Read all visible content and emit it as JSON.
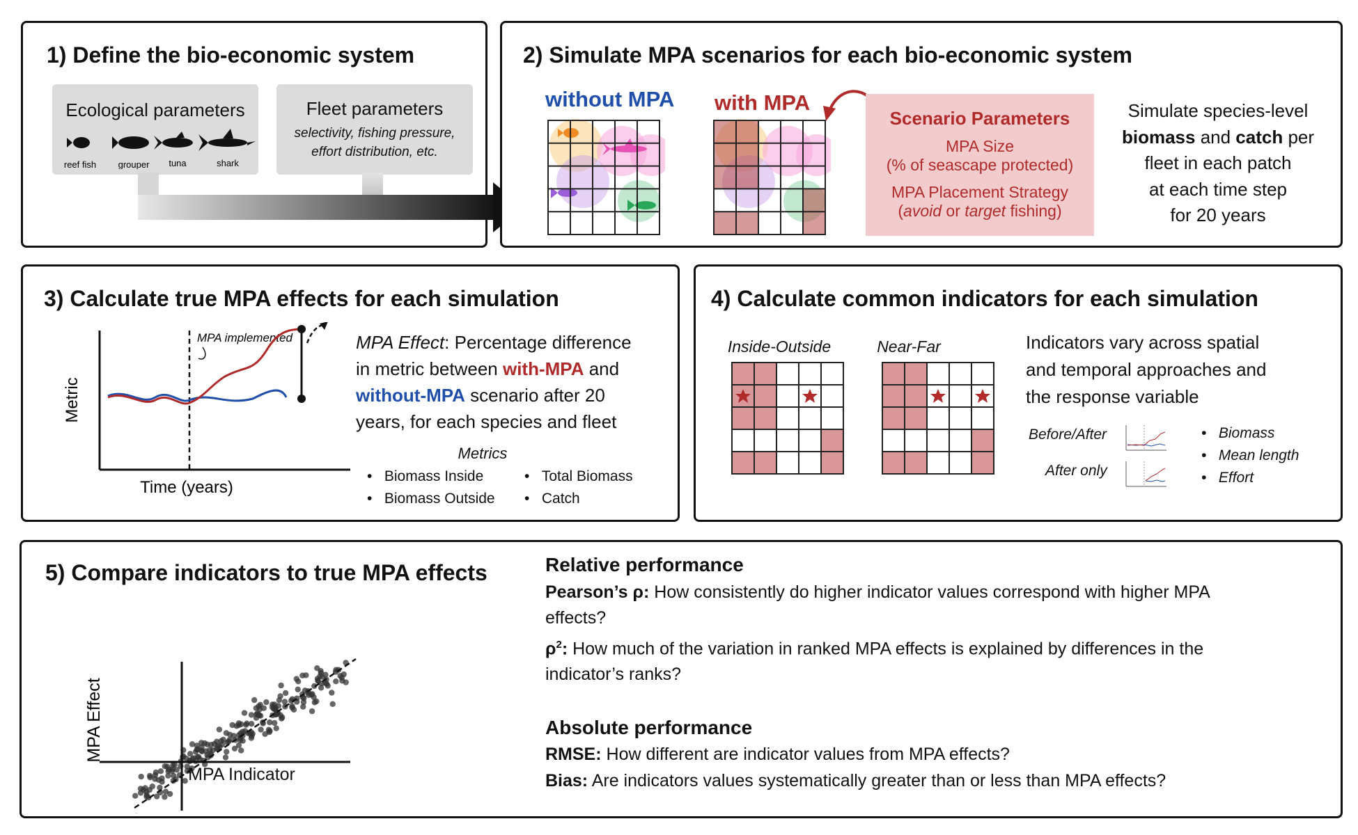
{
  "panel1": {
    "title": "1) Define the bio-economic system",
    "eco_title": "Ecological parameters",
    "species": [
      "reef fish",
      "grouper",
      "tuna",
      "shark"
    ],
    "fleet_title": "Fleet parameters",
    "fleet_line1": "selectivity, fishing pressure,",
    "fleet_line2": "effort distribution, etc."
  },
  "panel2": {
    "title": "2) Simulate MPA scenarios for each bio-economic system",
    "without_label": "without MPA",
    "with_label": "with MPA",
    "scenario_title": "Scenario Parameters",
    "mpa_size": "MPA Size",
    "mpa_size_sub": "(% of seascape protected)",
    "placement": "MPA Placement Strategy",
    "placement_avoid": "avoid",
    "placement_or": " or ",
    "placement_target": "target",
    "placement_fishing": " fishing)",
    "placement_open": "(",
    "sim_l1": "Simulate species-level",
    "sim_biomass": "biomass",
    "sim_and": " and ",
    "sim_catch": "catch",
    "sim_per": " per",
    "sim_l3": "fleet in each patch",
    "sim_l4": "at each time step",
    "sim_l5": "for 20 years"
  },
  "panel3": {
    "title": "3) Calculate true MPA effects for each simulation",
    "y_label": "Metric",
    "x_label": "Time (years)",
    "annotation": "MPA implemented",
    "effect_italic": "MPA Effect",
    "effect_l1_rest": ": Percentage difference",
    "effect_l2a": "in metric between ",
    "effect_l2b": "with-MPA",
    "effect_l2c": " and",
    "effect_l3a": "without-MPA",
    "effect_l3b": " scenario after 20",
    "effect_l4": "years, for each species and fleet",
    "metrics_title": "Metrics",
    "metrics": [
      "Biomass Inside",
      "Biomass Outside",
      "Total Biomass",
      "Catch"
    ]
  },
  "panel4": {
    "title": "4) Calculate common indicators for each simulation",
    "inside_outside": "Inside-Outside",
    "near_far": "Near-Far",
    "desc_l1": "Indicators vary across spatial",
    "desc_l2": "and temporal approaches and",
    "desc_l3": "the response variable",
    "before_after": "Before/After",
    "after_only": "After only",
    "responses": [
      "Biomass",
      "Mean length",
      "Effort"
    ]
  },
  "panel5": {
    "title": "5) Compare indicators to true MPA effects",
    "y_label": "MPA Effect",
    "x_label": "MPA Indicator",
    "rel_title": "Relative performance",
    "pearson_label": "Pearson’s ρ:",
    "pearson_text": " How consistently do higher indicator values correspond with higher MPA",
    "pearson_text2": "effects?",
    "rho2_label": "ρ",
    "rho2_sup": "2",
    "rho2_colon": ":",
    "rho2_text": " How much of the variation in ranked MPA effects is explained by differences in the",
    "rho2_text2": "indicator’s ranks?",
    "abs_title": "Absolute performance",
    "rmse_label": "RMSE:",
    "rmse_text": " How different are indicator values from MPA effects?",
    "bias_label": "Bias:",
    "bias_text": " Are indicators values systematically greater than or less than MPA effects?"
  },
  "colors": {
    "mpa_red": "#b02a2a",
    "without_blue": "#1f4faa",
    "cell_red": "#d9979a",
    "scenario_bg": "#f2cccc",
    "gray_box": "#dcdcdc"
  }
}
